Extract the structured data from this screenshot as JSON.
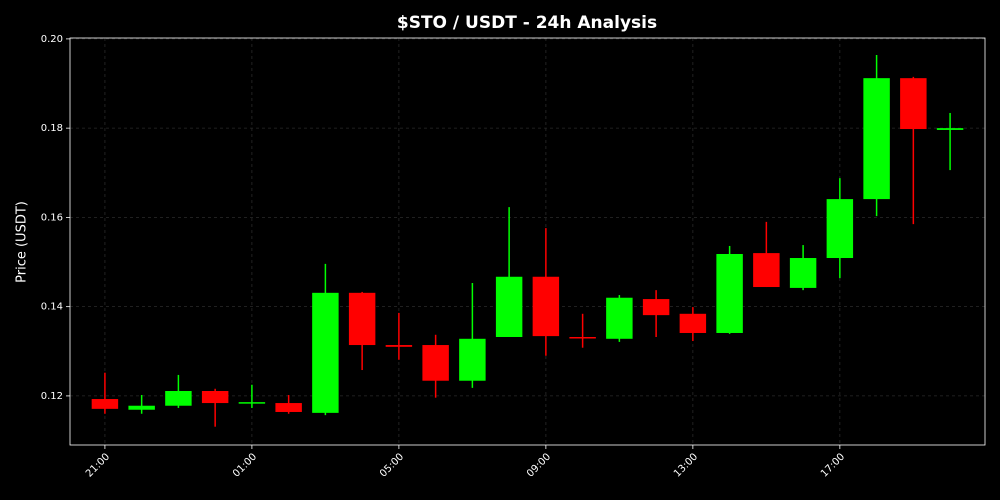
{
  "chart_data": {
    "type": "candlestick",
    "title": "$STO / USDT - 24h Analysis",
    "y_label": "Price (USDT)",
    "categories": [
      "21:00",
      null,
      null,
      null,
      "01:00",
      null,
      null,
      null,
      "05:00",
      null,
      null,
      null,
      "09:00",
      null,
      null,
      null,
      "13:00",
      null,
      null,
      null,
      "17:00",
      null,
      null,
      null
    ],
    "open": [
      0.1193,
      0.1169,
      0.1178,
      0.1211,
      0.1184,
      0.1184,
      0.1162,
      0.1431,
      0.1314,
      0.1314,
      0.1234,
      0.1332,
      0.1467,
      0.1332,
      0.1328,
      0.1417,
      0.1384,
      0.1341,
      0.152,
      0.1442,
      0.1509,
      0.1641,
      0.1912,
      0.1796
    ],
    "high": [
      0.1252,
      0.1202,
      0.1247,
      0.1216,
      0.1225,
      0.1202,
      0.1496,
      0.1433,
      0.1386,
      0.1337,
      0.1453,
      0.1623,
      0.1576,
      0.1384,
      0.1426,
      0.1437,
      0.1399,
      0.1536,
      0.159,
      0.1538,
      0.1688,
      0.1964,
      0.1915,
      0.1834
    ],
    "low": [
      0.116,
      0.116,
      0.1173,
      0.1131,
      0.1173,
      0.116,
      0.1157,
      0.1258,
      0.1281,
      0.1196,
      0.1218,
      0.1332,
      0.129,
      0.1308,
      0.1321,
      0.1332,
      0.1323,
      0.1339,
      0.1444,
      0.1437,
      0.1464,
      0.1603,
      0.1585,
      0.1706
    ],
    "close": [
      0.1171,
      0.1178,
      0.1211,
      0.1184,
      0.1186,
      0.1164,
      0.1431,
      0.1314,
      0.131,
      0.1234,
      0.1328,
      0.1467,
      0.1334,
      0.133,
      0.142,
      0.1381,
      0.1341,
      0.1518,
      0.1444,
      0.1509,
      0.1641,
      0.1912,
      0.1798,
      0.18
    ],
    "up_color": "#00ff00",
    "down_color": "#ff0000",
    "ylim": [
      0.109,
      0.2002
    ],
    "yticks": [
      0.12,
      0.14,
      0.16,
      0.18,
      {
        "value": 0.2,
        "label": "0.20"
      }
    ],
    "grid": true
  }
}
